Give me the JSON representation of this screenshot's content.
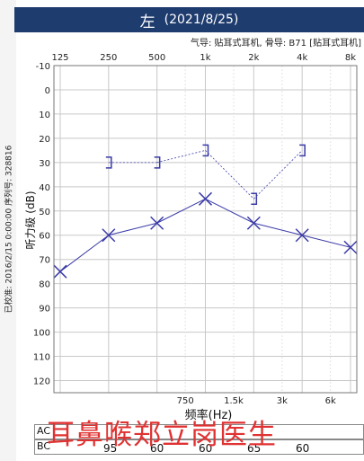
{
  "header": {
    "side": "左",
    "date": "(2021/8/25)"
  },
  "subtitle": "气导: 贴耳式耳机, 骨导: B71 [贴耳式耳机]",
  "side_text": "已校准: 2016/2/15 0:00:00 序列号: 328816",
  "chart_data": {
    "type": "line",
    "x_top_labels": [
      "125",
      "250",
      "500",
      "1k",
      "2k",
      "4k",
      "8k"
    ],
    "x_bottom_labels": [
      "750",
      "1.5k",
      "3k",
      "6k"
    ],
    "xlabel": "频率(Hz)",
    "ylabel": "听力级 (dB)",
    "y_ticks": [
      -10,
      0,
      10,
      20,
      30,
      40,
      50,
      60,
      70,
      80,
      90,
      100,
      110,
      120
    ],
    "ylim": [
      -10,
      125
    ],
    "y_inverted": true,
    "grid": true,
    "series": [
      {
        "marker": "X",
        "color": "#3a3aa8",
        "x": [
          125,
          250,
          500,
          1000,
          2000,
          4000,
          8000
        ],
        "values": [
          75,
          60,
          55,
          45,
          55,
          60,
          65
        ]
      },
      {
        "marker": "]",
        "color": "#3a3aa8",
        "x": [
          250,
          500,
          1000,
          2000,
          4000
        ],
        "values": [
          30,
          30,
          25,
          45,
          25
        ]
      }
    ]
  },
  "table": {
    "rows": [
      {
        "label": "AC",
        "values": []
      },
      {
        "label": "BC",
        "values": [
          "95",
          "60",
          "60",
          "65",
          "60"
        ]
      }
    ]
  },
  "watermark": "耳鼻喉郑立岗医生"
}
